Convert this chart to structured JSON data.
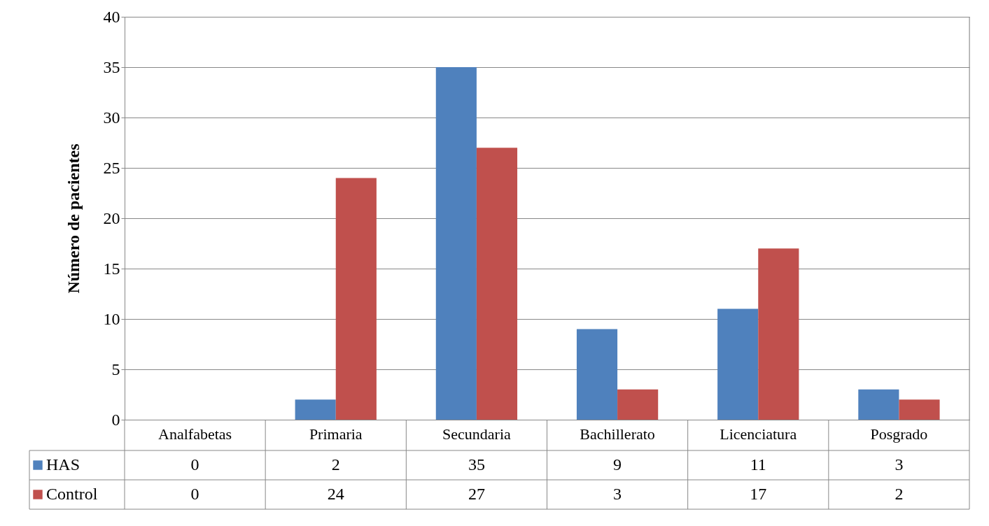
{
  "chart_data": {
    "type": "bar",
    "ylabel": "Número de pacientes",
    "categories": [
      "Analfabetas",
      "Primaria",
      "Secundaria",
      "Bachillerato",
      "Licenciatura",
      "Posgrado"
    ],
    "series": [
      {
        "name": "HAS",
        "color": "#4f81bd",
        "values": [
          0,
          2,
          35,
          9,
          11,
          3
        ]
      },
      {
        "name": "Control",
        "color": "#c0504d",
        "values": [
          0,
          24,
          27,
          3,
          17,
          2
        ]
      }
    ],
    "ylim": [
      0,
      40
    ],
    "yticks": [
      0,
      5,
      10,
      15,
      20,
      25,
      30,
      35,
      40
    ],
    "grid": "y",
    "legend": "bottom",
    "data_labels": true
  }
}
